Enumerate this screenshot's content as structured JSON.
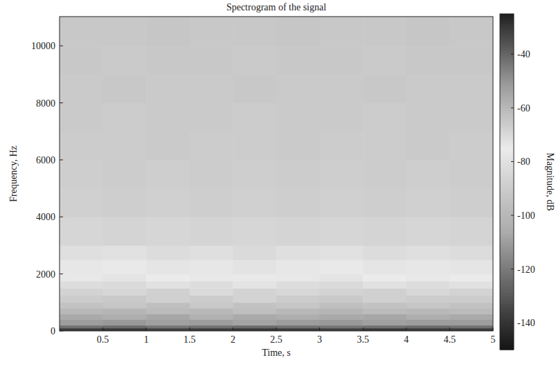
{
  "chart_data": {
    "type": "heatmap",
    "title": "Spectrogram of the signal",
    "x_label": "Time, s",
    "y_label": "Frequency, Hz",
    "xlim": [
      0,
      5
    ],
    "ylim": [
      0,
      11025
    ],
    "xticks": [
      0.5,
      1,
      1.5,
      2,
      2.5,
      3,
      3.5,
      4,
      4.5,
      5
    ],
    "yticks": [
      0,
      2000,
      4000,
      6000,
      8000,
      10000
    ],
    "grid": false,
    "x_edges": [
      0,
      0.5,
      1,
      1.5,
      2,
      2.5,
      3,
      3.5,
      4,
      4.5,
      5
    ],
    "y_edges": [
      0,
      100,
      200,
      400,
      600,
      800,
      1000,
      1250,
      1500,
      1750,
      2000,
      2500,
      3000,
      4000,
      5000,
      6000,
      7000,
      8000,
      9000,
      10000,
      11025
    ],
    "cells": [
      [
        -31,
        -30,
        -32,
        -31,
        -30,
        -31,
        -32,
        -30,
        -31,
        -31
      ],
      [
        -42,
        -41,
        -43,
        -42,
        -41,
        -42,
        -43,
        -42,
        -41,
        -42
      ],
      [
        -52,
        -51,
        -53,
        -52,
        -54,
        -52,
        -51,
        -53,
        -52,
        -52
      ],
      [
        -56,
        -57,
        -55,
        -58,
        -56,
        -57,
        -56,
        -55,
        -57,
        -56
      ],
      [
        -60,
        -59,
        -61,
        -60,
        -62,
        -60,
        -59,
        -61,
        -60,
        -61
      ],
      [
        -63,
        -64,
        -62,
        -65,
        -63,
        -64,
        -62,
        -63,
        -64,
        -63
      ],
      [
        -66,
        -65,
        -67,
        -66,
        -68,
        -66,
        -65,
        -67,
        -66,
        -66
      ],
      [
        -68,
        -69,
        -67,
        -70,
        -68,
        -69,
        -68,
        -67,
        -69,
        -68
      ],
      [
        -71,
        -70,
        -72,
        -71,
        -73,
        -71,
        -70,
        -72,
        -71,
        -72
      ],
      [
        -74,
        -73,
        -75,
        -74,
        -76,
        -74,
        -73,
        -75,
        -74,
        -75
      ],
      [
        -77,
        -76,
        -78,
        -77,
        -79,
        -77,
        -76,
        -78,
        -77,
        -78
      ],
      [
        -81,
        -80,
        -82,
        -81,
        -83,
        -81,
        -80,
        -82,
        -81,
        -82
      ],
      [
        -85,
        -86,
        -85,
        -86,
        -85,
        -86,
        -85,
        -86,
        -85,
        -86
      ],
      [
        -88,
        -89,
        -88,
        -89,
        -88,
        -89,
        -88,
        -89,
        -88,
        -89
      ],
      [
        -89,
        -90,
        -89,
        -90,
        -89,
        -90,
        -89,
        -90,
        -89,
        -90
      ],
      [
        -90,
        -90,
        -91,
        -90,
        -90,
        -91,
        -90,
        -90,
        -91,
        -90
      ],
      [
        -91,
        -90,
        -91,
        -91,
        -90,
        -91,
        -91,
        -90,
        -91,
        -91
      ],
      [
        -91,
        -92,
        -91,
        -91,
        -92,
        -91,
        -91,
        -92,
        -91,
        -91
      ],
      [
        -92,
        -91,
        -92,
        -92,
        -91,
        -92,
        -92,
        -91,
        -92,
        -92
      ],
      [
        -92,
        -92,
        -93,
        -92,
        -92,
        -93,
        -92,
        -92,
        -93,
        -92
      ]
    ],
    "colorbar": {
      "label": "Magnitude, dB",
      "range": [
        -150,
        -25
      ],
      "ticks": [
        -40,
        -60,
        -80,
        -100,
        -120,
        -140
      ]
    }
  }
}
